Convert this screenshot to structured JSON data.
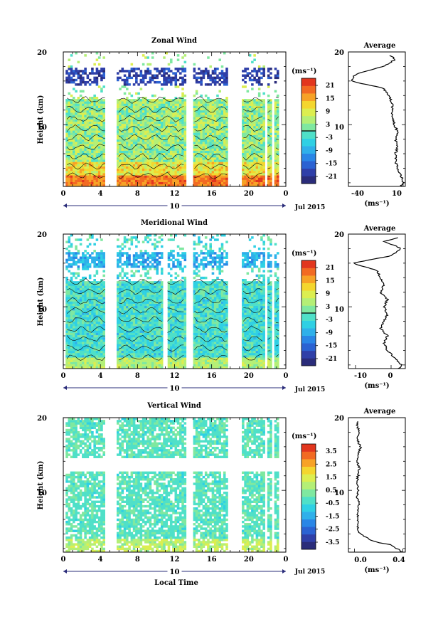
{
  "x_axis": {
    "ticks": [
      "0",
      "4",
      "8",
      "12",
      "16",
      "20",
      "0"
    ],
    "day": "10",
    "month": "Jul 2015",
    "label": "Local Time"
  },
  "y_axis": {
    "label": "Height (km)",
    "ticks": [
      "20",
      "10"
    ]
  },
  "units": "(ms⁻¹)",
  "panels": [
    {
      "title": "Zonal Wind",
      "avg_title": "Average",
      "colorbar_ticks": [
        "21",
        "15",
        "9",
        "3",
        "-3",
        "-9",
        "-15",
        "-21"
      ],
      "avg_xticks": [
        "-40",
        "10"
      ],
      "avg_xlabel": "(ms⁻¹)"
    },
    {
      "title": "Meridional Wind",
      "avg_title": "Average",
      "colorbar_ticks": [
        "21",
        "15",
        "9",
        "3",
        "-3",
        "-9",
        "-15",
        "-21"
      ],
      "avg_xticks": [
        "-10",
        "0"
      ],
      "avg_xlabel": "(ms⁻¹)"
    },
    {
      "title": "Vertical Wind",
      "avg_title": "Average",
      "colorbar_ticks": [
        "3.5",
        "2.5",
        "1.5",
        "0.5",
        "-0.5",
        "-1.5",
        "-2.5",
        "-3.5"
      ],
      "avg_xticks": [
        "0.0",
        "0.4"
      ],
      "avg_xlabel": "(ms⁻¹)"
    }
  ],
  "chart_data": [
    {
      "type": "heatmap",
      "title": "Zonal Wind",
      "xlabel": "Local Time",
      "ylabel": "Height (km)",
      "xlim": [
        0,
        24
      ],
      "ylim": [
        1.5,
        20
      ],
      "colorbar": {
        "unit": "ms^-1",
        "range": [
          -24,
          24
        ],
        "ticks": [
          21,
          15,
          9,
          3,
          -3,
          -9,
          -15,
          -21
        ],
        "zero_contour": true
      },
      "data_gaps_hours": [
        [
          4.5,
          5.8
        ],
        [
          13.2,
          14.0
        ],
        [
          17.8,
          19.3
        ],
        [
          21.7,
          22.0
        ],
        [
          22.4,
          22.7
        ],
        [
          23.3,
          24.0
        ]
      ],
      "average_profile": {
        "xlabel": "(ms^-1)",
        "xlim": [
          -40,
          12
        ],
        "xticks": [
          -40,
          10
        ],
        "height": [
          1.5,
          2,
          3,
          4,
          5,
          6,
          7,
          8,
          9,
          10,
          11,
          12,
          13,
          14,
          15,
          16,
          17,
          18,
          19,
          19.5
        ],
        "value": [
          8,
          10,
          8,
          5,
          3,
          3,
          5,
          3,
          5,
          2,
          0,
          0,
          0,
          -3,
          -8,
          -38,
          -33,
          -8,
          3,
          -2
        ]
      }
    },
    {
      "type": "heatmap",
      "title": "Meridional Wind",
      "xlabel": "Local Time",
      "ylabel": "Height (km)",
      "xlim": [
        0,
        24
      ],
      "ylim": [
        1.5,
        20
      ],
      "colorbar": {
        "unit": "ms^-1",
        "range": [
          -24,
          24
        ],
        "ticks": [
          21,
          15,
          9,
          3,
          -3,
          -9,
          -15,
          -21
        ],
        "zero_contour": true
      },
      "data_gaps_hours": [
        [
          4.5,
          5.8
        ],
        [
          10.8,
          11.2
        ],
        [
          13.2,
          14.0
        ],
        [
          17.8,
          19.3
        ],
        [
          21.7,
          22.0
        ],
        [
          22.4,
          22.7
        ],
        [
          23.3,
          24.0
        ]
      ],
      "average_profile": {
        "xlabel": "(ms^-1)",
        "xlim": [
          -12,
          4
        ],
        "xticks": [
          -10,
          0
        ],
        "height": [
          1.5,
          2,
          3,
          4,
          5,
          6,
          7,
          8,
          9,
          10,
          11,
          12,
          13,
          14,
          15,
          16,
          17,
          18,
          19,
          19.5
        ],
        "value": [
          2,
          3,
          1,
          -1,
          -2,
          -1,
          -3,
          -2,
          -1,
          -2,
          -1,
          -3,
          -2,
          -3,
          -4,
          -11,
          0,
          3,
          -2,
          2
        ]
      }
    },
    {
      "type": "heatmap",
      "title": "Vertical Wind",
      "xlabel": "Local Time",
      "ylabel": "Height (km)",
      "xlim": [
        0,
        24
      ],
      "ylim": [
        1.5,
        20
      ],
      "colorbar": {
        "unit": "ms^-1",
        "range": [
          -4,
          4
        ],
        "ticks": [
          3.5,
          2.5,
          1.5,
          0.5,
          -0.5,
          -1.5,
          -2.5,
          -3.5
        ]
      },
      "data_gaps_hours": [
        [
          4.5,
          5.8
        ],
        [
          13.2,
          14.0
        ],
        [
          17.8,
          19.3
        ],
        [
          21.7,
          22.0
        ],
        [
          22.4,
          22.7
        ],
        [
          23.3,
          24.0
        ]
      ],
      "average_profile": {
        "xlabel": "(ms^-1)",
        "xlim": [
          -0.05,
          0.42
        ],
        "xticks": [
          0.0,
          0.4
        ],
        "height": [
          1.5,
          2,
          2.5,
          3,
          4,
          5,
          6,
          7,
          8,
          9,
          10,
          11,
          12,
          13,
          14,
          15,
          16,
          17,
          18,
          19,
          19.5
        ],
        "value": [
          0.39,
          0.35,
          0.3,
          0.15,
          0.05,
          0.02,
          0.03,
          0.02,
          0.04,
          0.02,
          0.03,
          0.02,
          0.03,
          0.04,
          0.02,
          0.03,
          0.05,
          0.02,
          0.04,
          0.02,
          0.03
        ]
      }
    }
  ]
}
